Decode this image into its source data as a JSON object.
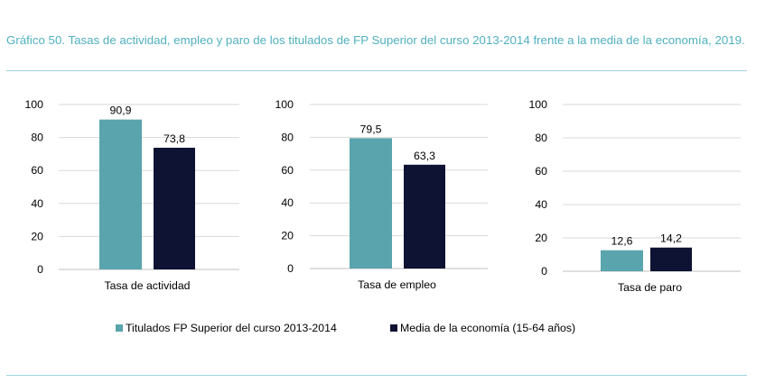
{
  "title": "Gráfico 50. Tasas de actividad, empleo y paro de los titulados de FP Superior del curso 2013-2014 frente a la media de la economía, 2019.",
  "colors": {
    "series_1": "#5aa4ad",
    "series_2": "#0e1233",
    "title": "#4fb0bf",
    "rule": "#9fd3dc",
    "grid": "#d9d9d9"
  },
  "chart_data": [
    {
      "type": "bar",
      "categories": [
        "Tasa de actividad"
      ],
      "series": [
        {
          "name": "Titulados FP Superior del curso 2013-2014",
          "values": [
            90.9
          ],
          "labels": [
            "90,9"
          ]
        },
        {
          "name": "Media de la economía (15-64 años)",
          "values": [
            73.8
          ],
          "labels": [
            "73,8"
          ]
        }
      ],
      "yticks": [
        "0",
        "20",
        "40",
        "60",
        "80",
        "100"
      ],
      "ylim": [
        0,
        100
      ],
      "xlabel": "Tasa de actividad"
    },
    {
      "type": "bar",
      "categories": [
        "Tasa de empleo"
      ],
      "series": [
        {
          "name": "Titulados FP Superior del curso 2013-2014",
          "values": [
            79.5
          ],
          "labels": [
            "79,5"
          ]
        },
        {
          "name": "Media de la economía (15-64 años)",
          "values": [
            63.3
          ],
          "labels": [
            "63,3"
          ]
        }
      ],
      "yticks": [
        "0",
        "20",
        "40",
        "60",
        "80",
        "100"
      ],
      "ylim": [
        0,
        100
      ],
      "xlabel": "Tasa de empleo"
    },
    {
      "type": "bar",
      "categories": [
        "Tasa de paro"
      ],
      "series": [
        {
          "name": "Titulados FP Superior del curso 2013-2014",
          "values": [
            12.6
          ],
          "labels": [
            "12,6"
          ]
        },
        {
          "name": "Media de la economía (15-64 años)",
          "values": [
            14.2
          ],
          "labels": [
            "14,2"
          ]
        }
      ],
      "yticks": [
        "0",
        "20",
        "40",
        "60",
        "80",
        "100"
      ],
      "ylim": [
        0,
        100
      ],
      "xlabel": "Tasa de paro"
    }
  ],
  "legend": [
    {
      "label": "Titulados FP Superior del curso 2013-2014"
    },
    {
      "label": "Media de la economía (15-64 años)"
    }
  ]
}
